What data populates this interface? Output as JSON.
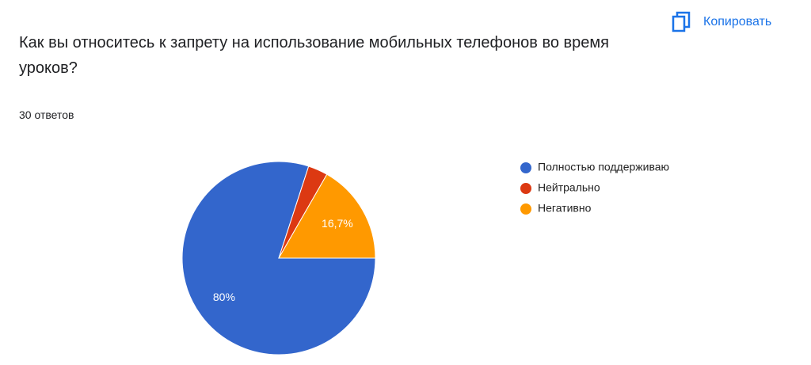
{
  "header": {
    "title": "Как вы относитесь к запрету на использование мобильных телефонов во время уроков?",
    "responses": "30 ответов",
    "copy_button": "Копировать"
  },
  "chart_data": {
    "type": "pie",
    "categories": [
      "Полностью поддерживаю",
      "Нейтрально",
      "Негативно"
    ],
    "values": [
      80,
      3.3,
      16.7
    ],
    "value_labels": [
      "80%",
      null,
      "16,7%"
    ],
    "colors": [
      "#3366cc",
      "#dc3912",
      "#ff9900"
    ],
    "legend": "right"
  }
}
